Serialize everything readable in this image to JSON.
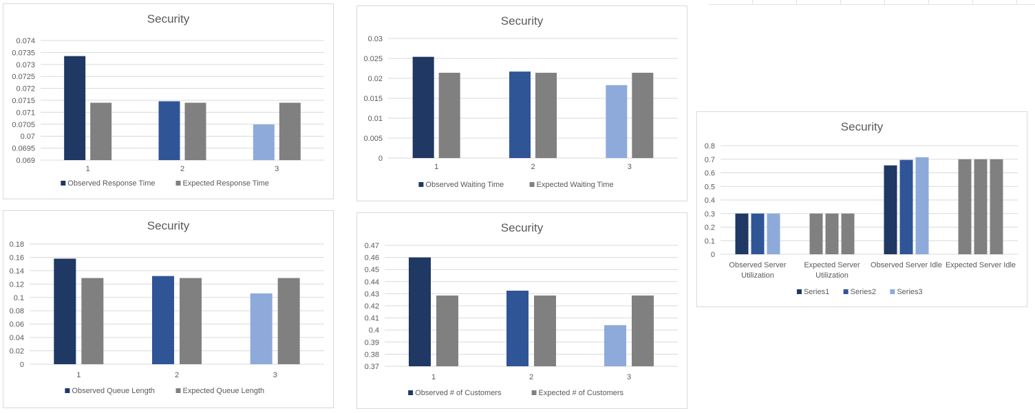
{
  "chart_data": [
    {
      "id": "response-time",
      "type": "bar",
      "title": "Security",
      "categories": [
        "1",
        "2",
        "3"
      ],
      "ylim": [
        0.069,
        0.074
      ],
      "yticks": [
        "0.069",
        "0.0695",
        "0.07",
        "0.0705",
        "0.071",
        "0.0715",
        "0.072",
        "0.0725",
        "0.073",
        "0.0735",
        "0.074"
      ],
      "grid": true,
      "legend_position": "bottom",
      "series": [
        {
          "name": "Observed Response Time",
          "values": [
            0.07335,
            0.07146,
            0.07049
          ],
          "colors": [
            "#1f3864",
            "#2f5597",
            "#8eaadb"
          ],
          "legend_color": "#1f3864"
        },
        {
          "name": "Expected Response Time",
          "values": [
            0.0714,
            0.0714,
            0.0714
          ],
          "colors": [
            "#808080",
            "#808080",
            "#808080"
          ],
          "legend_color": "#808080"
        }
      ]
    },
    {
      "id": "waiting-time",
      "type": "bar",
      "title": "Security",
      "categories": [
        "1",
        "2",
        "3"
      ],
      "ylim": [
        0,
        0.03
      ],
      "yticks": [
        "0",
        "0.005",
        "0.01",
        "0.015",
        "0.02",
        "0.025",
        "0.03"
      ],
      "grid": true,
      "legend_position": "bottom",
      "series": [
        {
          "name": "Observed Waiting Time",
          "values": [
            0.0254,
            0.0217,
            0.0183
          ],
          "colors": [
            "#1f3864",
            "#2f5597",
            "#8eaadb"
          ],
          "legend_color": "#1f3864"
        },
        {
          "name": "Expected Waiting Time",
          "values": [
            0.0214,
            0.0214,
            0.0214
          ],
          "colors": [
            "#808080",
            "#808080",
            "#808080"
          ],
          "legend_color": "#808080"
        }
      ]
    },
    {
      "id": "server-utilization",
      "type": "bar",
      "title": "Security",
      "categories": [
        "Observed  Server\nUtilization",
        "Expected Server\nUtilization",
        "Observed Server Idle",
        "Expected Server Idle"
      ],
      "ylim": [
        0,
        0.8
      ],
      "yticks": [
        "0",
        "0.1",
        "0.2",
        "0.3",
        "0.4",
        "0.5",
        "0.6",
        "0.7",
        "0.8"
      ],
      "grid": true,
      "legend_position": "bottom",
      "series": [
        {
          "name": "Series1",
          "values": [
            0.3,
            0.3,
            0.655,
            0.7
          ],
          "colors": [
            "#1f3864",
            "#808080",
            "#1f3864",
            "#808080"
          ],
          "legend_color": "#1f3864"
        },
        {
          "name": "Series2",
          "values": [
            0.3,
            0.3,
            0.695,
            0.7
          ],
          "colors": [
            "#2f5597",
            "#808080",
            "#2f5597",
            "#808080"
          ],
          "legend_color": "#2f5597"
        },
        {
          "name": "Series3",
          "values": [
            0.3,
            0.3,
            0.715,
            0.7
          ],
          "colors": [
            "#8eaadb",
            "#808080",
            "#8eaadb",
            "#808080"
          ],
          "legend_color": "#8eaadb"
        }
      ]
    },
    {
      "id": "queue-length",
      "type": "bar",
      "title": "Security",
      "categories": [
        "1",
        "2",
        "3"
      ],
      "ylim": [
        0,
        0.18
      ],
      "yticks": [
        "0",
        "0.02",
        "0.04",
        "0.06",
        "0.08",
        "0.1",
        "0.12",
        "0.14",
        "0.16",
        "0.18"
      ],
      "grid": true,
      "legend_position": "bottom",
      "series": [
        {
          "name": "Observed Queue Length",
          "values": [
            0.158,
            0.132,
            0.106
          ],
          "colors": [
            "#1f3864",
            "#2f5597",
            "#8eaadb"
          ],
          "legend_color": "#1f3864"
        },
        {
          "name": "Expected Queue Length",
          "values": [
            0.129,
            0.129,
            0.129
          ],
          "colors": [
            "#808080",
            "#808080",
            "#808080"
          ],
          "legend_color": "#808080"
        }
      ]
    },
    {
      "id": "customers",
      "type": "bar",
      "title": "Security",
      "categories": [
        "1",
        "2",
        "3"
      ],
      "ylim": [
        0.37,
        0.47
      ],
      "yticks": [
        "0.37",
        "0.38",
        "0.39",
        "0.4",
        "0.41",
        "0.42",
        "0.43",
        "0.44",
        "0.45",
        "0.46",
        "0.47"
      ],
      "grid": true,
      "legend_position": "bottom",
      "series": [
        {
          "name": "Observed  # of Customers",
          "values": [
            0.46,
            0.4325,
            0.404
          ],
          "colors": [
            "#1f3864",
            "#2f5597",
            "#8eaadb"
          ],
          "legend_color": "#1f3864"
        },
        {
          "name": "Expected # of Customers",
          "values": [
            0.4285,
            0.4285,
            0.4285
          ],
          "colors": [
            "#808080",
            "#808080",
            "#808080"
          ],
          "legend_color": "#808080"
        }
      ]
    }
  ]
}
